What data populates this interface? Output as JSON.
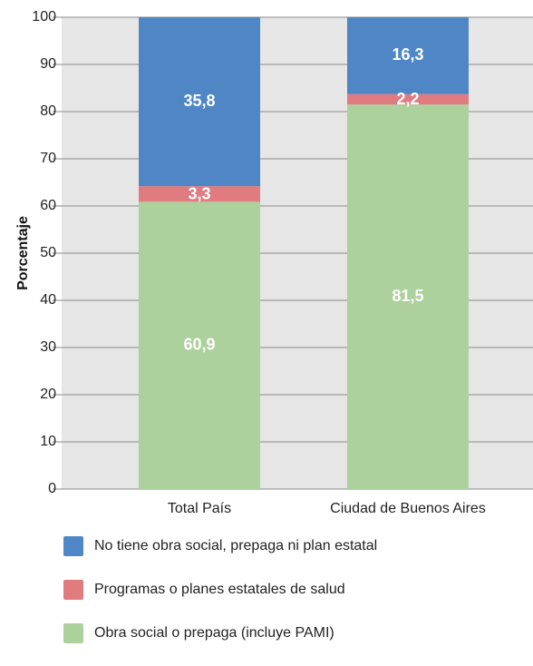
{
  "chart_data": {
    "type": "bar",
    "stacked": true,
    "categories": [
      "Total País",
      "Ciudad de Buenos Aires"
    ],
    "series": [
      {
        "name": "Obra social o prepaga (incluye PAMI)",
        "values": [
          60.9,
          81.5
        ],
        "labels": [
          "60,9",
          "81,5"
        ],
        "color": "#acd19c"
      },
      {
        "name": "Programas o planes estatales de salud",
        "values": [
          3.3,
          2.2
        ],
        "labels": [
          "3,3",
          "2,2"
        ],
        "color": "#e07b80"
      },
      {
        "name": "No tiene obra social, prepaga ni plan estatal",
        "values": [
          35.8,
          16.3
        ],
        "labels": [
          "35,8",
          "16,3"
        ],
        "color": "#4f86c6"
      }
    ],
    "ylabel": "Porcentaje",
    "ylim": [
      0,
      100
    ],
    "yticks": [
      0,
      10,
      20,
      30,
      40,
      50,
      60,
      70,
      80,
      90,
      100
    ],
    "grid": true,
    "plot_background": "#e6e6e6",
    "legend_position": "bottom"
  }
}
